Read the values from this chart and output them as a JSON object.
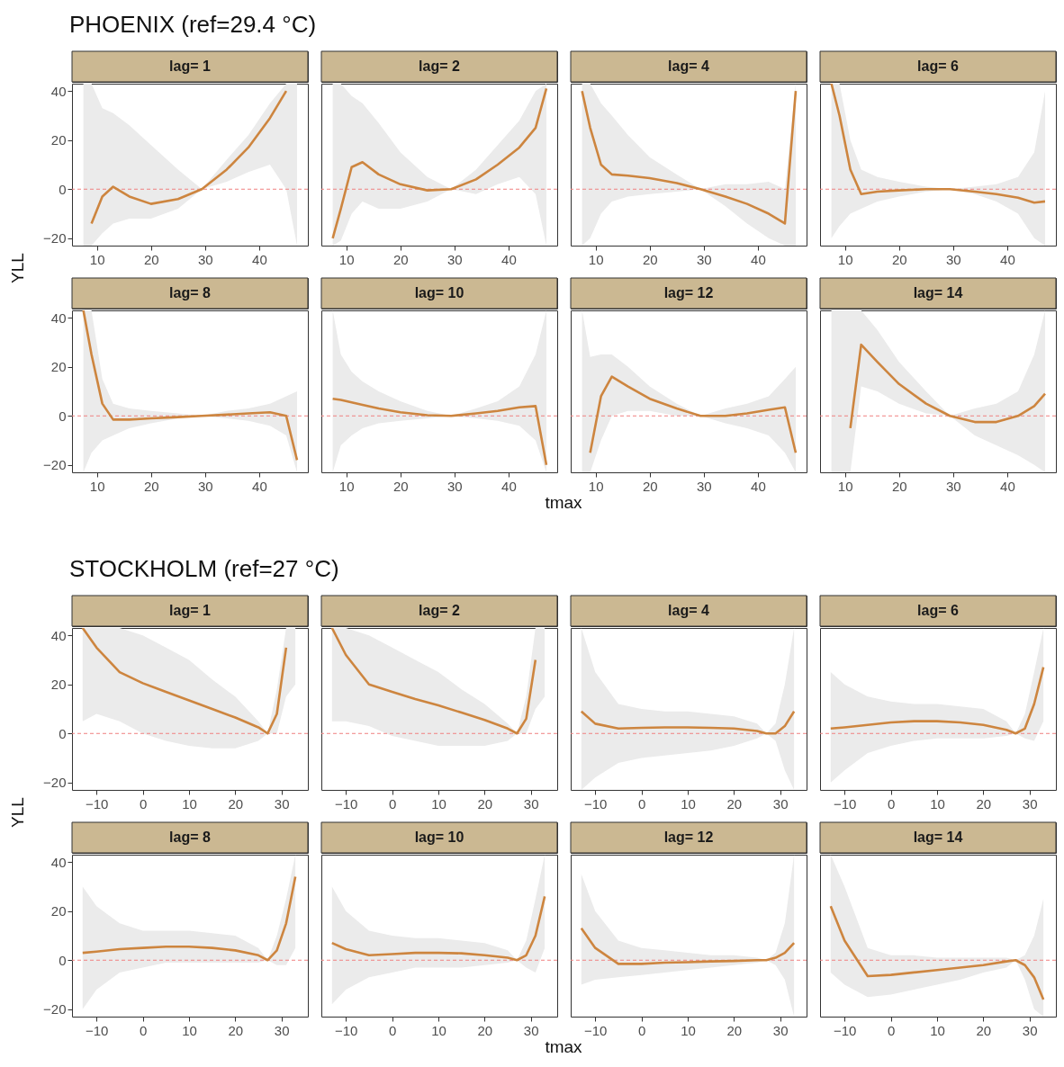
{
  "chart_data": [
    {
      "type": "line",
      "title": "lag= 1",
      "annotations": [
        "PHOENIX (ref=29.4 °C)"
      ],
      "x": [
        7.5,
        9,
        11,
        13,
        16,
        20,
        25,
        29.4,
        34,
        38,
        42,
        45,
        47
      ],
      "xlim": [
        5.4,
        49
      ],
      "xticks": [
        10,
        20,
        30,
        40
      ],
      "ylim": [
        -23,
        43
      ],
      "yticks": [
        -20,
        0,
        20,
        40
      ],
      "ref_lines": [
        {
          "axis": "y",
          "value": 0,
          "color": "#f08080",
          "line_style": "dashed"
        }
      ],
      "series": [
        {
          "color": "#cd853f",
          "values": [
            null,
            -14,
            -3,
            1,
            -3,
            -6,
            -4,
            0,
            8,
            17,
            29,
            40,
            null
          ],
          "lower": [
            -23,
            -23,
            -18,
            -14,
            -12,
            -12,
            -8,
            0,
            3,
            7,
            10,
            0,
            -23
          ],
          "upper": [
            43,
            43,
            33,
            31,
            26,
            18,
            8,
            0,
            12,
            22,
            35,
            43,
            43
          ]
        }
      ]
    },
    {
      "type": "line",
      "title": "lag= 2",
      "tick_labels": "x",
      "x": [
        7.5,
        9,
        11,
        13,
        16,
        20,
        25,
        29.4,
        34,
        38,
        42,
        45,
        47
      ],
      "xlim": [
        5.4,
        49
      ],
      "xticks": [
        10,
        20,
        30,
        40
      ],
      "ylim": [
        -23,
        43
      ],
      "yticks": [
        -20,
        0,
        20,
        40
      ],
      "ref_lines": [
        {
          "axis": "y",
          "value": 0,
          "color": "#f08080",
          "line_style": "dashed"
        }
      ],
      "series": [
        {
          "color": "#cd853f",
          "values": [
            -20,
            -8,
            9,
            11,
            6,
            2,
            -0.5,
            0,
            4,
            10,
            17,
            25,
            41
          ],
          "lower": [
            -23,
            -21,
            -10,
            -5,
            -8,
            -8,
            -5,
            0,
            -2,
            2,
            5,
            -2,
            -23
          ],
          "upper": [
            43,
            43,
            38,
            35,
            27,
            15,
            5,
            0,
            8,
            18,
            28,
            40,
            43
          ]
        }
      ]
    },
    {
      "type": "line",
      "title": "lag= 4",
      "tick_labels": "x",
      "x": [
        7.5,
        9,
        11,
        13,
        16,
        20,
        25,
        29.4,
        34,
        38,
        42,
        45,
        47
      ],
      "xlim": [
        5.4,
        49
      ],
      "xticks": [
        10,
        20,
        30,
        40
      ],
      "ylim": [
        -23,
        43
      ],
      "yticks": [
        -20,
        0,
        20,
        40
      ],
      "ref_lines": [
        {
          "axis": "y",
          "value": 0,
          "color": "#f08080",
          "line_style": "dashed"
        }
      ],
      "series": [
        {
          "color": "#cd853f",
          "values": [
            40,
            25,
            10,
            6,
            5.5,
            4.5,
            2.5,
            0,
            -3,
            -6,
            -10,
            -14,
            40
          ],
          "lower": [
            -23,
            -20,
            -10,
            -5,
            -3,
            -2,
            -1,
            0,
            -7,
            -14,
            -20,
            -23,
            -23
          ],
          "upper": [
            43,
            43,
            35,
            30,
            22,
            13,
            6,
            0,
            2,
            2,
            3,
            0,
            43
          ]
        }
      ]
    },
    {
      "type": "line",
      "title": "lag= 6",
      "tick_labels": "x",
      "x": [
        7.5,
        9,
        11,
        13,
        16,
        20,
        25,
        29.4,
        34,
        38,
        42,
        45,
        47
      ],
      "xlim": [
        5.4,
        49
      ],
      "xticks": [
        10,
        20,
        30,
        40
      ],
      "ylim": [
        -23,
        43
      ],
      "yticks": [
        -20,
        0,
        20,
        40
      ],
      "ref_lines": [
        {
          "axis": "y",
          "value": 0,
          "color": "#f08080",
          "line_style": "dashed"
        }
      ],
      "series": [
        {
          "color": "#cd853f",
          "values": [
            43,
            30,
            8,
            -2,
            -1,
            -0.5,
            0,
            0,
            -1,
            -2,
            -3.5,
            -5.5,
            -5
          ],
          "lower": [
            -20,
            -15,
            -10,
            -8,
            -5,
            -3,
            -1,
            0,
            -2,
            -5,
            -10,
            -20,
            -23
          ],
          "upper": [
            43,
            43,
            20,
            8,
            5,
            3,
            1,
            0,
            1,
            2,
            5,
            15,
            40
          ]
        }
      ]
    },
    {
      "type": "line",
      "title": "lag= 8",
      "ylabel": "YLL",
      "x": [
        7.5,
        9,
        11,
        13,
        16,
        20,
        25,
        29.4,
        34,
        38,
        42,
        45,
        47
      ],
      "xlim": [
        5.4,
        49
      ],
      "xticks": [
        10,
        20,
        30,
        40
      ],
      "ylim": [
        -23,
        43
      ],
      "yticks": [
        -20,
        0,
        20,
        40
      ],
      "ref_lines": [
        {
          "axis": "y",
          "value": 0,
          "color": "#f08080",
          "line_style": "dashed"
        }
      ],
      "series": [
        {
          "color": "#cd853f",
          "values": [
            43,
            25,
            5,
            -1.5,
            -1.5,
            -1,
            -0.5,
            0,
            0.5,
            1,
            1.5,
            0,
            -18
          ],
          "lower": [
            -23,
            -15,
            -10,
            -8,
            -5,
            -3,
            -1,
            0,
            -1,
            -2,
            -4,
            -8,
            -23
          ],
          "upper": [
            43,
            43,
            15,
            5,
            3,
            2,
            1,
            0,
            2,
            3,
            5,
            8,
            10
          ]
        }
      ]
    },
    {
      "type": "line",
      "title": "lag= 10",
      "tick_labels": "x",
      "xlabel": "tmax",
      "x": [
        7.5,
        9,
        11,
        13,
        16,
        20,
        25,
        29.4,
        34,
        38,
        42,
        45,
        47
      ],
      "xlim": [
        5.4,
        49
      ],
      "xticks": [
        10,
        20,
        30,
        40
      ],
      "ylim": [
        -23,
        43
      ],
      "yticks": [
        -20,
        0,
        20,
        40
      ],
      "ref_lines": [
        {
          "axis": "y",
          "value": 0,
          "color": "#f08080",
          "line_style": "dashed"
        }
      ],
      "series": [
        {
          "color": "#cd853f",
          "values": [
            7,
            6.5,
            5.5,
            4.5,
            3,
            1.5,
            0.3,
            0,
            1,
            2,
            3.5,
            4,
            -20
          ],
          "lower": [
            -23,
            -12,
            -8,
            -5,
            -3,
            -2,
            -1,
            0,
            -1,
            -2,
            -4,
            -10,
            -23
          ],
          "upper": [
            43,
            25,
            18,
            14,
            10,
            6,
            2,
            0,
            3,
            6,
            12,
            25,
            43
          ]
        }
      ]
    },
    {
      "type": "line",
      "title": "lag= 12",
      "tick_labels": "x",
      "x": [
        7.5,
        9,
        11,
        13,
        16,
        20,
        25,
        29.4,
        34,
        38,
        42,
        45,
        47
      ],
      "xlim": [
        5.4,
        49
      ],
      "xticks": [
        10,
        20,
        30,
        40
      ],
      "ylim": [
        -23,
        43
      ],
      "yticks": [
        -20,
        0,
        20,
        40
      ],
      "ref_lines": [
        {
          "axis": "y",
          "value": 0,
          "color": "#f08080",
          "line_style": "dashed"
        }
      ],
      "series": [
        {
          "color": "#cd853f",
          "values": [
            null,
            -15,
            8,
            16,
            12,
            7,
            3,
            0,
            0,
            1,
            2.5,
            3.5,
            -15
          ],
          "lower": [
            -23,
            -23,
            -10,
            0,
            2,
            2,
            0,
            0,
            -3,
            -5,
            -8,
            -15,
            -23
          ],
          "upper": [
            43,
            24,
            25,
            25,
            20,
            12,
            5,
            0,
            3,
            5,
            8,
            15,
            20
          ]
        }
      ]
    },
    {
      "type": "line",
      "title": "lag= 14",
      "tick_labels": "x",
      "x": [
        7.5,
        9,
        11,
        13,
        16,
        20,
        25,
        29.4,
        34,
        38,
        42,
        45,
        47
      ],
      "xlim": [
        5.4,
        49
      ],
      "xticks": [
        10,
        20,
        30,
        40
      ],
      "ylim": [
        -23,
        43
      ],
      "yticks": [
        -20,
        0,
        20,
        40
      ],
      "ref_lines": [
        {
          "axis": "y",
          "value": 0,
          "color": "#f08080",
          "line_style": "dashed"
        }
      ],
      "series": [
        {
          "color": "#cd853f",
          "values": [
            null,
            null,
            -5,
            29,
            22,
            13,
            5,
            0,
            -2.5,
            -2.5,
            0,
            4,
            9
          ],
          "lower": [
            -23,
            -23,
            -23,
            12,
            10,
            5,
            1,
            0,
            -8,
            -12,
            -16,
            -20,
            -23
          ],
          "upper": [
            43,
            43,
            43,
            43,
            35,
            22,
            10,
            0,
            3,
            5,
            10,
            25,
            43
          ]
        }
      ]
    },
    {
      "type": "line",
      "title": "lag= 1",
      "annotations": [
        "STOCKHOLM (ref=27 °C)"
      ],
      "x": [
        -13,
        -10,
        -5,
        0,
        5,
        10,
        15,
        20,
        25,
        27,
        29,
        31,
        33
      ],
      "xlim": [
        -15.3,
        35.7
      ],
      "xticks": [
        -10,
        0,
        10,
        20,
        30
      ],
      "ylim": [
        -23,
        43
      ],
      "yticks": [
        -20,
        0,
        20,
        40
      ],
      "ref_lines": [
        {
          "axis": "y",
          "value": 0,
          "color": "#f08080",
          "line_style": "dashed"
        }
      ],
      "series": [
        {
          "color": "#cd853f",
          "values": [
            43,
            35,
            25,
            20.5,
            17,
            13.5,
            10,
            6.5,
            2.5,
            0,
            8,
            35,
            null
          ],
          "lower": [
            5,
            8,
            5,
            0,
            -3,
            -5,
            -6,
            -6,
            -3,
            0,
            0,
            15,
            20
          ],
          "upper": [
            43,
            43,
            43,
            40,
            35,
            30,
            22,
            15,
            5,
            0,
            18,
            43,
            43
          ]
        }
      ]
    },
    {
      "type": "line",
      "title": "lag= 2",
      "tick_labels": "x",
      "x": [
        -13,
        -10,
        -5,
        0,
        5,
        10,
        15,
        20,
        25,
        27,
        29,
        31,
        33
      ],
      "xlim": [
        -15.3,
        35.7
      ],
      "xticks": [
        -10,
        0,
        10,
        20,
        30
      ],
      "ylim": [
        -23,
        43
      ],
      "yticks": [
        -20,
        0,
        20,
        40
      ],
      "ref_lines": [
        {
          "axis": "y",
          "value": 0,
          "color": "#f08080",
          "line_style": "dashed"
        }
      ],
      "series": [
        {
          "color": "#cd853f",
          "values": [
            43,
            32,
            20,
            17,
            14,
            11.5,
            8.5,
            5.5,
            2,
            0,
            6,
            30,
            null
          ],
          "lower": [
            5,
            5,
            3,
            -1,
            -3,
            -5,
            -5,
            -5,
            -3,
            0,
            0,
            10,
            15
          ],
          "upper": [
            43,
            43,
            40,
            35,
            30,
            25,
            18,
            12,
            4,
            0,
            15,
            43,
            43
          ]
        }
      ]
    },
    {
      "type": "line",
      "title": "lag= 4",
      "tick_labels": "x",
      "x": [
        -13,
        -10,
        -5,
        0,
        5,
        10,
        15,
        20,
        25,
        27,
        29,
        31,
        33
      ],
      "xlim": [
        -15.3,
        35.7
      ],
      "xticks": [
        -10,
        0,
        10,
        20,
        30
      ],
      "ylim": [
        -23,
        43
      ],
      "yticks": [
        -20,
        0,
        20,
        40
      ],
      "ref_lines": [
        {
          "axis": "y",
          "value": 0,
          "color": "#f08080",
          "line_style": "dashed"
        }
      ],
      "series": [
        {
          "color": "#cd853f",
          "values": [
            9,
            4,
            2,
            2.3,
            2.5,
            2.5,
            2.3,
            2,
            1,
            0,
            0,
            3,
            9
          ],
          "lower": [
            -23,
            -18,
            -12,
            -10,
            -9,
            -8,
            -7,
            -5,
            -2,
            0,
            -3,
            -15,
            -23
          ],
          "upper": [
            43,
            25,
            12,
            10,
            9,
            9,
            8,
            7,
            4,
            0,
            4,
            20,
            43
          ]
        }
      ]
    },
    {
      "type": "line",
      "title": "lag= 6",
      "tick_labels": "x",
      "x": [
        -13,
        -10,
        -5,
        0,
        5,
        10,
        15,
        20,
        25,
        27,
        29,
        31,
        33
      ],
      "xlim": [
        -15.3,
        35.7
      ],
      "xticks": [
        -10,
        0,
        10,
        20,
        30
      ],
      "ylim": [
        -23,
        43
      ],
      "yticks": [
        -20,
        0,
        20,
        40
      ],
      "ref_lines": [
        {
          "axis": "y",
          "value": 0,
          "color": "#f08080",
          "line_style": "dashed"
        }
      ],
      "series": [
        {
          "color": "#cd853f",
          "values": [
            2,
            2.5,
            3.5,
            4.5,
            5,
            5,
            4.5,
            3.5,
            1.5,
            0,
            2,
            12,
            27
          ],
          "lower": [
            -20,
            -15,
            -8,
            -5,
            -3,
            -2,
            -2,
            -2,
            -1,
            0,
            -2,
            -3,
            5
          ],
          "upper": [
            25,
            20,
            15,
            13,
            12,
            12,
            11,
            10,
            5,
            0,
            8,
            25,
            43
          ]
        }
      ]
    },
    {
      "type": "line",
      "title": "lag= 8",
      "ylabel": "YLL",
      "x": [
        -13,
        -10,
        -5,
        0,
        5,
        10,
        15,
        20,
        25,
        27,
        29,
        31,
        33
      ],
      "xlim": [
        -15.3,
        35.7
      ],
      "xticks": [
        -10,
        0,
        10,
        20,
        30
      ],
      "ylim": [
        -23,
        43
      ],
      "yticks": [
        -20,
        0,
        20,
        40
      ],
      "ref_lines": [
        {
          "axis": "y",
          "value": 0,
          "color": "#f08080",
          "line_style": "dashed"
        }
      ],
      "series": [
        {
          "color": "#cd853f",
          "values": [
            3,
            3.5,
            4.5,
            5,
            5.5,
            5.5,
            5,
            4,
            2,
            0,
            4,
            15,
            34
          ],
          "lower": [
            -20,
            -12,
            -5,
            -3,
            -1,
            -1,
            -1,
            -1,
            -1,
            0,
            -2,
            -2,
            5
          ],
          "upper": [
            30,
            22,
            15,
            12,
            12,
            12,
            11,
            10,
            5,
            0,
            10,
            25,
            43
          ]
        }
      ]
    },
    {
      "type": "line",
      "title": "lag= 10",
      "tick_labels": "x",
      "xlabel": "tmax",
      "x": [
        -13,
        -10,
        -5,
        0,
        5,
        10,
        15,
        20,
        25,
        27,
        29,
        31,
        33
      ],
      "xlim": [
        -15.3,
        35.7
      ],
      "xticks": [
        -10,
        0,
        10,
        20,
        30
      ],
      "ylim": [
        -23,
        43
      ],
      "yticks": [
        -20,
        0,
        20,
        40
      ],
      "ref_lines": [
        {
          "axis": "y",
          "value": 0,
          "color": "#f08080",
          "line_style": "dashed"
        }
      ],
      "series": [
        {
          "color": "#cd853f",
          "values": [
            7,
            4.5,
            2,
            2.5,
            3,
            3,
            2.8,
            2,
            1,
            0,
            2,
            10,
            26
          ],
          "lower": [
            -18,
            -12,
            -7,
            -5,
            -3,
            -3,
            -3,
            -2,
            -1,
            0,
            -3,
            -5,
            5
          ],
          "upper": [
            30,
            20,
            12,
            10,
            9,
            9,
            8,
            7,
            4,
            0,
            8,
            25,
            43
          ]
        }
      ]
    },
    {
      "type": "line",
      "title": "lag= 12",
      "tick_labels": "x",
      "x": [
        -13,
        -10,
        -5,
        0,
        5,
        10,
        15,
        20,
        25,
        27,
        29,
        31,
        33
      ],
      "xlim": [
        -15.3,
        35.7
      ],
      "xticks": [
        -10,
        0,
        10,
        20,
        30
      ],
      "ylim": [
        -23,
        43
      ],
      "yticks": [
        -20,
        0,
        20,
        40
      ],
      "ref_lines": [
        {
          "axis": "y",
          "value": 0,
          "color": "#f08080",
          "line_style": "dashed"
        }
      ],
      "series": [
        {
          "color": "#cd853f",
          "values": [
            13,
            5,
            -1.5,
            -1.5,
            -1,
            -0.8,
            -0.5,
            -0.3,
            0,
            0,
            1,
            3,
            7
          ],
          "lower": [
            -10,
            -8,
            -7,
            -6,
            -5,
            -4,
            -3,
            -2,
            -1,
            0,
            -2,
            -8,
            -23
          ],
          "upper": [
            35,
            20,
            8,
            5,
            4,
            3,
            2,
            2,
            1,
            0,
            3,
            15,
            43
          ]
        }
      ]
    },
    {
      "type": "line",
      "title": "lag= 14",
      "tick_labels": "x",
      "x": [
        -13,
        -10,
        -5,
        0,
        5,
        10,
        15,
        20,
        25,
        27,
        29,
        31,
        33
      ],
      "xlim": [
        -15.3,
        35.7
      ],
      "xticks": [
        -10,
        0,
        10,
        20,
        30
      ],
      "ylim": [
        -23,
        43
      ],
      "yticks": [
        -20,
        0,
        20,
        40
      ],
      "ref_lines": [
        {
          "axis": "y",
          "value": 0,
          "color": "#f08080",
          "line_style": "dashed"
        }
      ],
      "series": [
        {
          "color": "#cd853f",
          "values": [
            22,
            8,
            -6.5,
            -6,
            -5,
            -4,
            -3,
            -2,
            -0.5,
            0,
            -2,
            -7,
            -16
          ],
          "lower": [
            -5,
            -10,
            -15,
            -14,
            -12,
            -10,
            -8,
            -5,
            -3,
            0,
            -8,
            -20,
            -23
          ],
          "upper": [
            43,
            30,
            5,
            2,
            2,
            1,
            1,
            1,
            1,
            0,
            2,
            10,
            25
          ]
        }
      ]
    }
  ]
}
